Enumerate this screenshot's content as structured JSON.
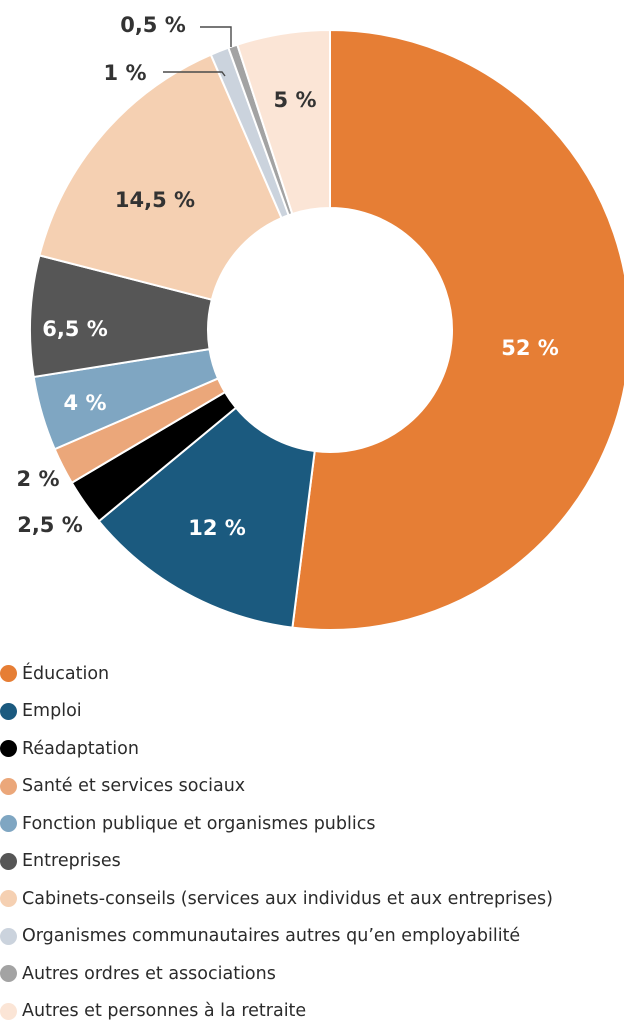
{
  "chart_data": {
    "type": "pie",
    "donut": true,
    "start_angle_deg": 0,
    "direction": "clockwise",
    "categories": [
      "Éducation",
      "Emploi",
      "Réadaptation",
      "Santé et services sociaux",
      "Fonction publique et organismes publics",
      "Entreprises",
      "Cabinets-conseils (services aux individus et aux entreprises)",
      "Organismes communautaires autres qu’en employabilité",
      "Autres ordres et associations",
      "Autres et personnes à la retraite"
    ],
    "values": [
      52,
      12,
      2.5,
      2,
      4,
      6.5,
      14.5,
      1,
      0.5,
      5
    ],
    "labels": [
      "52 %",
      "12 %",
      "2,5 %",
      "2 %",
      "4 %",
      "6,5 %",
      "14,5 %",
      "1 %",
      "0,5 %",
      "5 %"
    ],
    "colors": [
      "#E67E35",
      "#1B5A7F",
      "#000000",
      "#EBA77A",
      "#7FA6C2",
      "#565656",
      "#F5D0B2",
      "#CBD3DD",
      "#A3A3A3",
      "#FBE5D6"
    ],
    "label_colors": [
      "#ffffff",
      "#ffffff",
      "#333333",
      "#333333",
      "#ffffff",
      "#ffffff",
      "#333333",
      "#333333",
      "#333333",
      "#333333"
    ],
    "legend_position": "bottom"
  }
}
